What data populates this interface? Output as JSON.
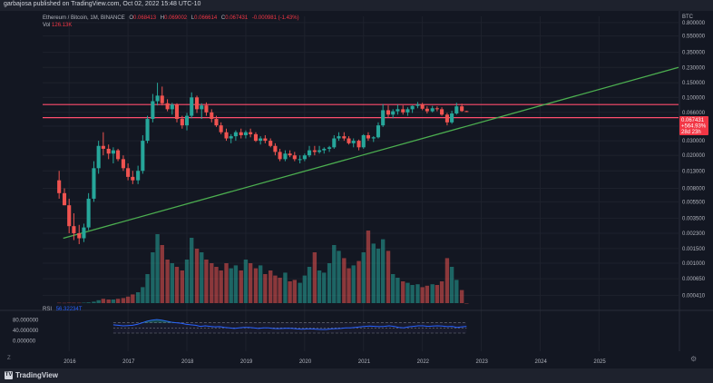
{
  "header": {
    "publisher": "garbajosa published on TradingView.com, Oct 02, 2022 15:48 UTC-10"
  },
  "legend": {
    "symbol": "Ethereum / Bitcoin, 1M, BINANCE",
    "o_label": "O",
    "o_value": "0.068413",
    "h_label": "H",
    "h_value": "0.069002",
    "l_label": "L",
    "l_value": "0.066614",
    "c_label": "C",
    "c_value": "0.067431",
    "change": "-0.000981 (-1.43%)",
    "vol_label": "Vol",
    "vol_value": "126.13K"
  },
  "rsi_legend": {
    "label": "RSI",
    "value": "56.32234T"
  },
  "bottom": {
    "brand": "TradingView",
    "logo_glyph": "TV"
  },
  "price_badge": {
    "line1": "0.067431",
    "line2": "+564.93%",
    "line3": "28d 23h"
  },
  "left_buttons": {
    "z": "Z"
  },
  "colors": {
    "up": "#26a69a",
    "down": "#ef5350",
    "trend": "#4caf50",
    "rsi": "#2962ff",
    "hline": "#ff4d6d",
    "bg": "#131722"
  },
  "chart_data": {
    "type": "candlestick",
    "title": "Ethereum / Bitcoin, 1M, BINANCE",
    "currency": "BTC",
    "yscale": "log",
    "ylim": [
      0.00033,
      0.95
    ],
    "y_ticks": [
      "0.800000",
      "0.550000",
      "0.350000",
      "0.230000",
      "0.150000",
      "0.100000",
      "0.066000",
      "0.045000",
      "0.030000",
      "0.020000",
      "0.013000",
      "0.008000",
      "0.005500",
      "0.003500",
      "0.002300",
      "0.001500",
      "0.001000",
      "0.000650",
      "0.000410"
    ],
    "x_ticks": [
      "2016",
      "2017",
      "2018",
      "2019",
      "2020",
      "2021",
      "2022",
      "2023",
      "2024",
      "2025"
    ],
    "xlim": [
      2015.55,
      2026.35
    ],
    "candles": [
      {
        "t": 2015.83,
        "o": 0.01,
        "h": 0.013,
        "l": 0.006,
        "c": 0.007
      },
      {
        "t": 2015.92,
        "o": 0.007,
        "h": 0.008,
        "l": 0.005,
        "c": 0.005
      },
      {
        "t": 2016.0,
        "o": 0.005,
        "h": 0.006,
        "l": 0.0023,
        "c": 0.0028
      },
      {
        "t": 2016.08,
        "o": 0.0028,
        "h": 0.004,
        "l": 0.0019,
        "c": 0.0023
      },
      {
        "t": 2016.17,
        "o": 0.0023,
        "h": 0.0029,
        "l": 0.0017,
        "c": 0.002
      },
      {
        "t": 2016.25,
        "o": 0.002,
        "h": 0.003,
        "l": 0.0018,
        "c": 0.0027
      },
      {
        "t": 2016.33,
        "o": 0.0027,
        "h": 0.007,
        "l": 0.0025,
        "c": 0.006
      },
      {
        "t": 2016.42,
        "o": 0.006,
        "h": 0.017,
        "l": 0.0055,
        "c": 0.014
      },
      {
        "t": 2016.5,
        "o": 0.014,
        "h": 0.03,
        "l": 0.012,
        "c": 0.026
      },
      {
        "t": 2016.58,
        "o": 0.026,
        "h": 0.038,
        "l": 0.02,
        "c": 0.024
      },
      {
        "t": 2016.67,
        "o": 0.024,
        "h": 0.027,
        "l": 0.018,
        "c": 0.021
      },
      {
        "t": 2016.75,
        "o": 0.021,
        "h": 0.025,
        "l": 0.016,
        "c": 0.023
      },
      {
        "t": 2016.83,
        "o": 0.023,
        "h": 0.024,
        "l": 0.017,
        "c": 0.018
      },
      {
        "t": 2016.92,
        "o": 0.018,
        "h": 0.02,
        "l": 0.013,
        "c": 0.014
      },
      {
        "t": 2017.0,
        "o": 0.014,
        "h": 0.016,
        "l": 0.01,
        "c": 0.011
      },
      {
        "t": 2017.08,
        "o": 0.011,
        "h": 0.013,
        "l": 0.009,
        "c": 0.01
      },
      {
        "t": 2017.17,
        "o": 0.01,
        "h": 0.015,
        "l": 0.009,
        "c": 0.013
      },
      {
        "t": 2017.25,
        "o": 0.013,
        "h": 0.035,
        "l": 0.012,
        "c": 0.03
      },
      {
        "t": 2017.33,
        "o": 0.03,
        "h": 0.06,
        "l": 0.028,
        "c": 0.055
      },
      {
        "t": 2017.42,
        "o": 0.055,
        "h": 0.11,
        "l": 0.05,
        "c": 0.09
      },
      {
        "t": 2017.5,
        "o": 0.09,
        "h": 0.15,
        "l": 0.08,
        "c": 0.105
      },
      {
        "t": 2017.58,
        "o": 0.105,
        "h": 0.135,
        "l": 0.08,
        "c": 0.085
      },
      {
        "t": 2017.67,
        "o": 0.085,
        "h": 0.095,
        "l": 0.068,
        "c": 0.072
      },
      {
        "t": 2017.75,
        "o": 0.072,
        "h": 0.086,
        "l": 0.062,
        "c": 0.082
      },
      {
        "t": 2017.83,
        "o": 0.082,
        "h": 0.085,
        "l": 0.05,
        "c": 0.055
      },
      {
        "t": 2017.92,
        "o": 0.055,
        "h": 0.06,
        "l": 0.042,
        "c": 0.046
      },
      {
        "t": 2018.0,
        "o": 0.046,
        "h": 0.065,
        "l": 0.04,
        "c": 0.06
      },
      {
        "t": 2018.08,
        "o": 0.06,
        "h": 0.115,
        "l": 0.056,
        "c": 0.1
      },
      {
        "t": 2018.17,
        "o": 0.1,
        "h": 0.105,
        "l": 0.065,
        "c": 0.072
      },
      {
        "t": 2018.25,
        "o": 0.072,
        "h": 0.085,
        "l": 0.055,
        "c": 0.08
      },
      {
        "t": 2018.33,
        "o": 0.08,
        "h": 0.087,
        "l": 0.06,
        "c": 0.066
      },
      {
        "t": 2018.42,
        "o": 0.066,
        "h": 0.072,
        "l": 0.05,
        "c": 0.055
      },
      {
        "t": 2018.5,
        "o": 0.055,
        "h": 0.06,
        "l": 0.044,
        "c": 0.046
      },
      {
        "t": 2018.58,
        "o": 0.046,
        "h": 0.05,
        "l": 0.036,
        "c": 0.038
      },
      {
        "t": 2018.67,
        "o": 0.038,
        "h": 0.042,
        "l": 0.03,
        "c": 0.032
      },
      {
        "t": 2018.75,
        "o": 0.032,
        "h": 0.036,
        "l": 0.028,
        "c": 0.034
      },
      {
        "t": 2018.83,
        "o": 0.034,
        "h": 0.04,
        "l": 0.03,
        "c": 0.038
      },
      {
        "t": 2018.92,
        "o": 0.038,
        "h": 0.042,
        "l": 0.032,
        "c": 0.035
      },
      {
        "t": 2019.0,
        "o": 0.035,
        "h": 0.04,
        "l": 0.032,
        "c": 0.038
      },
      {
        "t": 2019.08,
        "o": 0.038,
        "h": 0.042,
        "l": 0.033,
        "c": 0.036
      },
      {
        "t": 2019.17,
        "o": 0.036,
        "h": 0.038,
        "l": 0.029,
        "c": 0.03
      },
      {
        "t": 2019.25,
        "o": 0.03,
        "h": 0.034,
        "l": 0.027,
        "c": 0.032
      },
      {
        "t": 2019.33,
        "o": 0.032,
        "h": 0.035,
        "l": 0.028,
        "c": 0.03
      },
      {
        "t": 2019.42,
        "o": 0.03,
        "h": 0.032,
        "l": 0.025,
        "c": 0.026
      },
      {
        "t": 2019.5,
        "o": 0.026,
        "h": 0.028,
        "l": 0.02,
        "c": 0.022
      },
      {
        "t": 2019.58,
        "o": 0.022,
        "h": 0.024,
        "l": 0.017,
        "c": 0.018
      },
      {
        "t": 2019.67,
        "o": 0.018,
        "h": 0.023,
        "l": 0.017,
        "c": 0.021
      },
      {
        "t": 2019.75,
        "o": 0.021,
        "h": 0.023,
        "l": 0.019,
        "c": 0.02
      },
      {
        "t": 2019.83,
        "o": 0.02,
        "h": 0.022,
        "l": 0.017,
        "c": 0.018
      },
      {
        "t": 2019.92,
        "o": 0.018,
        "h": 0.02,
        "l": 0.016,
        "c": 0.018
      },
      {
        "t": 2020.0,
        "o": 0.018,
        "h": 0.021,
        "l": 0.017,
        "c": 0.02
      },
      {
        "t": 2020.08,
        "o": 0.02,
        "h": 0.026,
        "l": 0.019,
        "c": 0.023
      },
      {
        "t": 2020.17,
        "o": 0.023,
        "h": 0.026,
        "l": 0.02,
        "c": 0.022
      },
      {
        "t": 2020.25,
        "o": 0.022,
        "h": 0.026,
        "l": 0.021,
        "c": 0.023
      },
      {
        "t": 2020.33,
        "o": 0.023,
        "h": 0.025,
        "l": 0.021,
        "c": 0.024
      },
      {
        "t": 2020.42,
        "o": 0.024,
        "h": 0.026,
        "l": 0.022,
        "c": 0.025
      },
      {
        "t": 2020.5,
        "o": 0.025,
        "h": 0.035,
        "l": 0.024,
        "c": 0.032
      },
      {
        "t": 2020.58,
        "o": 0.032,
        "h": 0.038,
        "l": 0.03,
        "c": 0.034
      },
      {
        "t": 2020.67,
        "o": 0.034,
        "h": 0.038,
        "l": 0.03,
        "c": 0.032
      },
      {
        "t": 2020.75,
        "o": 0.032,
        "h": 0.034,
        "l": 0.027,
        "c": 0.028
      },
      {
        "t": 2020.83,
        "o": 0.028,
        "h": 0.032,
        "l": 0.025,
        "c": 0.03
      },
      {
        "t": 2020.92,
        "o": 0.03,
        "h": 0.031,
        "l": 0.023,
        "c": 0.025
      },
      {
        "t": 2021.0,
        "o": 0.025,
        "h": 0.036,
        "l": 0.024,
        "c": 0.035
      },
      {
        "t": 2021.08,
        "o": 0.035,
        "h": 0.038,
        "l": 0.03,
        "c": 0.032
      },
      {
        "t": 2021.17,
        "o": 0.032,
        "h": 0.034,
        "l": 0.029,
        "c": 0.033
      },
      {
        "t": 2021.25,
        "o": 0.033,
        "h": 0.05,
        "l": 0.032,
        "c": 0.046
      },
      {
        "t": 2021.33,
        "o": 0.046,
        "h": 0.083,
        "l": 0.044,
        "c": 0.07
      },
      {
        "t": 2021.42,
        "o": 0.07,
        "h": 0.08,
        "l": 0.058,
        "c": 0.062
      },
      {
        "t": 2021.5,
        "o": 0.062,
        "h": 0.072,
        "l": 0.056,
        "c": 0.068
      },
      {
        "t": 2021.58,
        "o": 0.068,
        "h": 0.082,
        "l": 0.062,
        "c": 0.072
      },
      {
        "t": 2021.67,
        "o": 0.072,
        "h": 0.08,
        "l": 0.062,
        "c": 0.066
      },
      {
        "t": 2021.75,
        "o": 0.066,
        "h": 0.076,
        "l": 0.06,
        "c": 0.072
      },
      {
        "t": 2021.83,
        "o": 0.072,
        "h": 0.08,
        "l": 0.065,
        "c": 0.079
      },
      {
        "t": 2021.92,
        "o": 0.079,
        "h": 0.088,
        "l": 0.074,
        "c": 0.082
      },
      {
        "t": 2022.0,
        "o": 0.082,
        "h": 0.086,
        "l": 0.07,
        "c": 0.073
      },
      {
        "t": 2022.08,
        "o": 0.073,
        "h": 0.078,
        "l": 0.064,
        "c": 0.068
      },
      {
        "t": 2022.17,
        "o": 0.068,
        "h": 0.079,
        "l": 0.066,
        "c": 0.074
      },
      {
        "t": 2022.25,
        "o": 0.074,
        "h": 0.078,
        "l": 0.068,
        "c": 0.072
      },
      {
        "t": 2022.33,
        "o": 0.072,
        "h": 0.076,
        "l": 0.06,
        "c": 0.062
      },
      {
        "t": 2022.42,
        "o": 0.062,
        "h": 0.065,
        "l": 0.046,
        "c": 0.05
      },
      {
        "t": 2022.5,
        "o": 0.05,
        "h": 0.069,
        "l": 0.048,
        "c": 0.064
      },
      {
        "t": 2022.58,
        "o": 0.064,
        "h": 0.086,
        "l": 0.062,
        "c": 0.078
      },
      {
        "t": 2022.67,
        "o": 0.078,
        "h": 0.084,
        "l": 0.067,
        "c": 0.0684
      },
      {
        "t": 2022.75,
        "o": 0.0684,
        "h": 0.069,
        "l": 0.0666,
        "c": 0.0674
      }
    ],
    "horizontal_lines": [
      0.082,
      0.057
    ],
    "trendline": [
      [
        2015.9,
        0.002
      ],
      [
        2026.35,
        0.23
      ]
    ],
    "volume": [
      0.5,
      0.4,
      0.6,
      0.5,
      0.5,
      0.6,
      1.0,
      2.0,
      4.0,
      6.0,
      5.0,
      5.0,
      6.0,
      7.0,
      9.0,
      12.0,
      15.0,
      22.0,
      40.0,
      70.0,
      95.0,
      80.0,
      60.0,
      55.0,
      50.0,
      45.0,
      60.0,
      90.0,
      75.0,
      70.0,
      60.0,
      55.0,
      50.0,
      45.0,
      55.0,
      48.0,
      52.0,
      45.0,
      60.0,
      55.0,
      48.0,
      52.0,
      40.0,
      45.0,
      38.0,
      35.0,
      42.0,
      30.0,
      32.0,
      28.0,
      38.0,
      50.0,
      70.0,
      45.0,
      42.0,
      55.0,
      80.0,
      72.0,
      62.0,
      48.0,
      52.0,
      58.0,
      70.0,
      100.0,
      82.0,
      75.0,
      88.0,
      72.0,
      40.0,
      35.0,
      30.0,
      28.0,
      25.0,
      26.0,
      22.0,
      24.0,
      26.0,
      25.0,
      30.0,
      62.0,
      50.0,
      32.0,
      18.0
    ],
    "rsi": {
      "values": [
        62,
        60,
        58,
        59,
        60,
        64,
        70,
        76,
        80,
        82,
        80,
        76,
        72,
        70,
        68,
        64,
        62,
        60,
        56,
        58,
        56,
        54,
        55,
        52,
        50,
        48,
        50,
        52,
        52,
        50,
        48,
        50,
        50,
        48,
        47,
        48,
        49,
        48,
        46,
        45,
        46,
        46,
        45,
        44,
        44,
        46,
        47,
        48,
        50,
        50,
        52,
        54,
        56,
        57,
        56,
        55,
        56,
        58,
        56,
        52,
        50,
        54,
        56,
        58,
        58,
        56,
        57,
        58,
        57,
        55,
        56,
        52,
        54,
        56
      ],
      "levels": [
        70,
        50,
        30
      ],
      "y_ticks": [
        "80.000000",
        "40.000000",
        "0.000000"
      ],
      "ylim": [
        -5,
        100
      ]
    }
  }
}
